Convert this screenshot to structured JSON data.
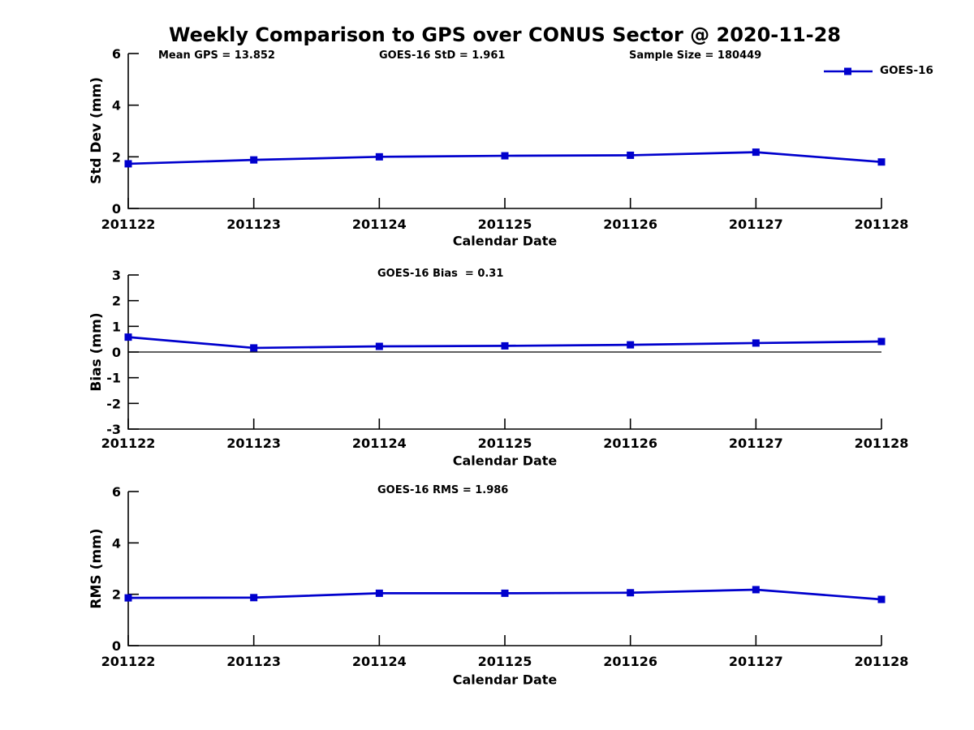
{
  "title": "Weekly Comparison to GPS over CONUS Sector @ 2020-11-28",
  "accent_color": "#0000cd",
  "legend": {
    "label": "GOES-16",
    "marker": "filled-square-icon",
    "color": "#0000cd",
    "position": "top-right"
  },
  "chart_data": [
    {
      "type": "line",
      "panel": "std_dev",
      "ylabel": "Std Dev (mm)",
      "xlabel": "Calendar Date",
      "ylim": [
        0,
        6
      ],
      "yticks": [
        0,
        2,
        4,
        6
      ],
      "grid": false,
      "categories": [
        "201122",
        "201123",
        "201124",
        "201125",
        "201126",
        "201127",
        "201128"
      ],
      "annotations": [
        "Mean GPS = 13.852",
        "GOES-16 StD = 1.961",
        "Sample Size = 180449"
      ],
      "series": [
        {
          "name": "GOES-16",
          "color": "#0000cd",
          "marker": "square",
          "values": [
            1.73,
            1.88,
            2.0,
            2.04,
            2.06,
            2.18,
            1.8
          ]
        }
      ]
    },
    {
      "type": "line",
      "panel": "bias",
      "ylabel": "Bias (mm)",
      "xlabel": "Calendar Date",
      "ylim": [
        -3,
        3
      ],
      "yticks": [
        3,
        2,
        1,
        0,
        -1,
        -2,
        -3
      ],
      "grid": false,
      "zero_line": true,
      "categories": [
        "201122",
        "201123",
        "201124",
        "201125",
        "201126",
        "201127",
        "201128"
      ],
      "annotations": [
        "GOES-16 Bias  = 0.31"
      ],
      "series": [
        {
          "name": "GOES-16",
          "color": "#0000cd",
          "marker": "square",
          "values": [
            0.58,
            0.16,
            0.22,
            0.24,
            0.28,
            0.35,
            0.41
          ]
        }
      ]
    },
    {
      "type": "line",
      "panel": "rms",
      "ylabel": "RMS (mm)",
      "xlabel": "Calendar Date",
      "ylim": [
        0,
        6
      ],
      "yticks": [
        0,
        2,
        4,
        6
      ],
      "grid": false,
      "categories": [
        "201122",
        "201123",
        "201124",
        "201125",
        "201126",
        "201127",
        "201128"
      ],
      "annotations": [
        "GOES-16 RMS = 1.986"
      ],
      "series": [
        {
          "name": "GOES-16",
          "color": "#0000cd",
          "marker": "square",
          "values": [
            1.86,
            1.87,
            2.04,
            2.04,
            2.06,
            2.18,
            1.8
          ]
        }
      ]
    }
  ]
}
